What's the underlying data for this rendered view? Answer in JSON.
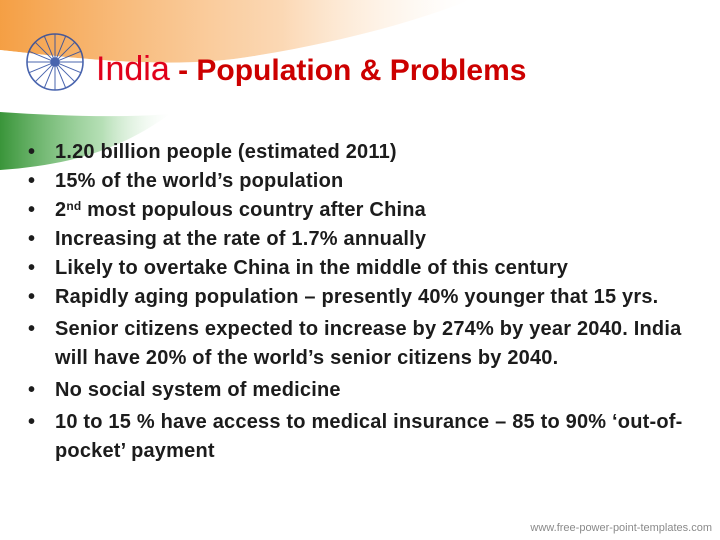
{
  "slide": {
    "title_country": "India",
    "title_rest": " - Population & Problems",
    "footer_url": "www.free-power-point-templates.com"
  },
  "bullets": [
    {
      "text": "1.20 billion people (estimated 2011)"
    },
    {
      "text": "15% of the world’s population"
    },
    {
      "pre": "2",
      "sup": "nd",
      "post": " most populous country after China"
    },
    {
      "text": "Increasing at the rate of 1.7% annually"
    },
    {
      "text": "Likely to overtake China in the middle of this century"
    },
    {
      "text": "Rapidly aging population – presently 40% younger that 15 yrs."
    },
    {
      "text": "Senior citizens expected to increase by 274% by year 2040. India will have 20% of the world’s senior citizens by 2040."
    },
    {
      "text": "No social system of medicine"
    },
    {
      "text": "10 to 15 % have access to medical insurance – 85 to 90% ‘out-of-pocket’ payment"
    }
  ],
  "colors": {
    "saffron": "#f7a44a",
    "green": "#3a9a3a",
    "chakra": "#1f3f9a",
    "title_red": "#cc0000"
  },
  "icons": [
    "ashoka-chakra-icon",
    "indian-flag-background"
  ]
}
